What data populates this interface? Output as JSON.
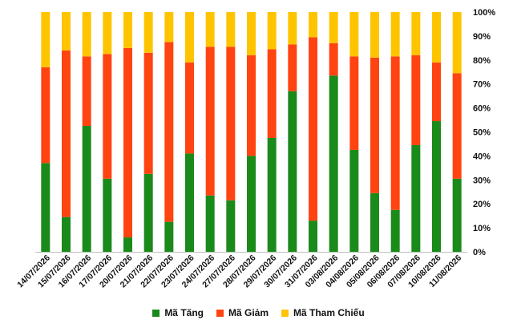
{
  "chart_data": {
    "type": "bar",
    "stacked": true,
    "percent_stacked": true,
    "categories": [
      "14/07/2026",
      "15/07/2026",
      "16/07/2026",
      "17/07/2026",
      "20/07/2026",
      "21/07/2026",
      "22/07/2026",
      "23/07/2026",
      "24/07/2026",
      "27/07/2026",
      "28/07/2026",
      "29/07/2026",
      "30/07/2026",
      "31/07/2026",
      "03/08/2026",
      "04/08/2026",
      "05/08/2026",
      "06/08/2026",
      "07/08/2026",
      "10/08/2026",
      "11/08/2026"
    ],
    "series": [
      {
        "name": "Mã Tăng",
        "color": "#1a8a1a",
        "values": [
          37,
          14.5,
          52.5,
          30.5,
          6,
          32.5,
          12.5,
          41,
          23.5,
          21.5,
          40,
          47.5,
          67,
          13,
          73.5,
          42.5,
          24.5,
          17.5,
          44.5,
          54.5,
          30.5
        ]
      },
      {
        "name": "Mã Giảm",
        "color": "#ff4411",
        "values": [
          40,
          69.5,
          29,
          52,
          79,
          50.5,
          75,
          38,
          62,
          64,
          42,
          37,
          19.5,
          76.5,
          13.5,
          39,
          56.5,
          64,
          37.5,
          24.5,
          44
        ]
      },
      {
        "name": "Mã Tham Chiếu",
        "color": "#ffc400",
        "values": [
          23,
          16,
          18.5,
          17.5,
          15,
          17,
          12.5,
          21,
          14.5,
          14.5,
          18,
          15.5,
          13.5,
          10.5,
          13,
          18.5,
          19,
          18.5,
          18,
          21,
          25.5
        ]
      }
    ],
    "ylim": [
      0,
      100
    ],
    "yticks": [
      "0%",
      "10%",
      "20%",
      "30%",
      "40%",
      "50%",
      "60%",
      "70%",
      "80%",
      "90%",
      "100%"
    ],
    "ylabel": "",
    "xlabel": "",
    "title": "",
    "grid": false,
    "legend_position": "bottom"
  }
}
